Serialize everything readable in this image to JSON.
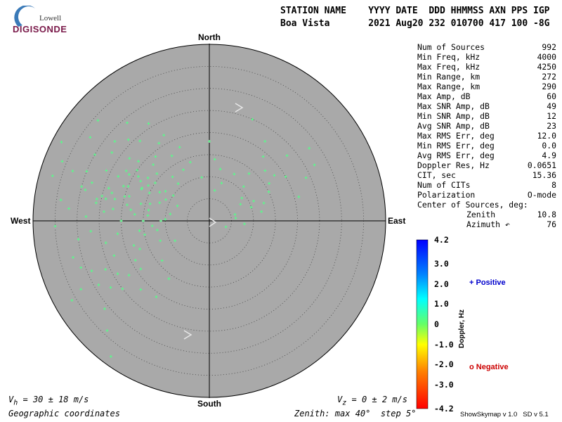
{
  "logo": {
    "small": "Lowell",
    "big": "DIGISONDE"
  },
  "header": {
    "line1": "STATION NAME    YYYY DATE  DDD HHMMSS AXN PPS IGP",
    "line2": "Boa Vista       2021 Aug20 232 010700 417 100 -8G"
  },
  "stats": [
    {
      "label": "Num of Sources",
      "value": "992"
    },
    {
      "label": "Min Freq, kHz",
      "value": "4000"
    },
    {
      "label": "Max Freq, kHz",
      "value": "4250"
    },
    {
      "label": "Min Range, km",
      "value": "272"
    },
    {
      "label": "Max Range, km",
      "value": "290"
    },
    {
      "label": "Max Amp, dB",
      "value": "60"
    },
    {
      "label": "Max SNR Amp, dB",
      "value": "49"
    },
    {
      "label": "Min SNR Amp, dB",
      "value": "12"
    },
    {
      "label": "Avg SNR Amp, dB",
      "value": "23"
    },
    {
      "label": "Max RMS Err, deg",
      "value": "12.0"
    },
    {
      "label": "Min RMS Err, deg",
      "value": "0.0"
    },
    {
      "label": "Avg RMS Err, deg",
      "value": "4.9"
    },
    {
      "label": "Doppler Res, Hz",
      "value": "0.0651"
    },
    {
      "label": "CIT, sec",
      "value": "15.36"
    },
    {
      "label": "Num of CITs",
      "value": "8"
    },
    {
      "label": "Polarization",
      "value": "O-mode"
    }
  ],
  "center": {
    "title": "Center of Sources, deg:",
    "zenith_label": "Zenith",
    "zenith_value": "10.8",
    "azimuth_label": "Azimuth ↶",
    "azimuth_value": "76"
  },
  "directions": {
    "north": "North",
    "south": "South",
    "east": "East",
    "west": "West"
  },
  "colorbar": {
    "ticks": [
      "4.2",
      "3.0",
      "2.0",
      "1.0",
      "0",
      "-1.0",
      "-2.0",
      "-3.0",
      "-4.2"
    ],
    "label": "Doppler, Hz"
  },
  "legend": {
    "positive": "+ Positive",
    "negative": "o Negative"
  },
  "footer": {
    "vh": "V",
    "vh_sub": "h",
    "vh_rest": " = 30 ± 18 m/s",
    "vz": "V",
    "vz_sub": "z",
    "vz_rest": " = 0 ± 2 m/s",
    "coords": "Geographic coordinates",
    "zenith": "Zenith: max 40°  step 5°",
    "version": "ShowSkymap v 1.0   SD v 5.1"
  },
  "colors": {
    "disc": "#a9a9a9",
    "point": "#55ff88",
    "positive": "#0000cc",
    "negative": "#cc0000"
  },
  "chart_data": {
    "type": "scatter",
    "projection": "polar skymap",
    "r_max_deg": 40,
    "r_step_deg": 5,
    "doppler_range": [
      -4.2,
      4.2
    ],
    "approximate": true,
    "r_unit": "zenith deg",
    "theta_unit": "azimuth deg",
    "points": [
      [
        6,
        76
      ],
      [
        6,
        84
      ],
      [
        4,
        110
      ],
      [
        8,
        95
      ],
      [
        8,
        62
      ],
      [
        10,
        72
      ],
      [
        11,
        66
      ],
      [
        12,
        80
      ],
      [
        13,
        72
      ],
      [
        15,
        64
      ],
      [
        16,
        58
      ],
      [
        18,
        55
      ],
      [
        21,
        75
      ],
      [
        22,
        35
      ],
      [
        25,
        23
      ],
      [
        27,
        62
      ],
      [
        10,
        272
      ],
      [
        14,
        280
      ],
      [
        20,
        286
      ],
      [
        17,
        296
      ],
      [
        25,
        283
      ],
      [
        30,
        285
      ],
      [
        34,
        278
      ],
      [
        33,
        290
      ],
      [
        27,
        305
      ],
      [
        15,
        305
      ],
      [
        13,
        320
      ],
      [
        12,
        290
      ],
      [
        16,
        312
      ],
      [
        21,
        300
      ],
      [
        18,
        300
      ],
      [
        19,
        302
      ],
      [
        22,
        301
      ],
      [
        17,
        295
      ],
      [
        20,
        293
      ],
      [
        23,
        296
      ],
      [
        14,
        286
      ],
      [
        16,
        284
      ],
      [
        24,
        288
      ],
      [
        26,
        296
      ],
      [
        23,
        308
      ],
      [
        21,
        310
      ],
      [
        18,
        315
      ],
      [
        13,
        300
      ],
      [
        15,
        295
      ],
      [
        19,
        287
      ],
      [
        22,
        283
      ],
      [
        11,
        296
      ],
      [
        12,
        304
      ],
      [
        17,
        305
      ],
      [
        14,
        275
      ],
      [
        18,
        278
      ],
      [
        22,
        277
      ],
      [
        26,
        281
      ],
      [
        29,
        284
      ],
      [
        24,
        275
      ],
      [
        20,
        270
      ],
      [
        27,
        265
      ],
      [
        21,
        262
      ],
      [
        16,
        262
      ],
      [
        12,
        260
      ],
      [
        18,
        252
      ],
      [
        23,
        250
      ],
      [
        26,
        245
      ],
      [
        29,
        247
      ],
      [
        33,
        242
      ],
      [
        36,
        240
      ],
      [
        32,
        255
      ],
      [
        30,
        262
      ],
      [
        24,
        258
      ],
      [
        25,
        232
      ],
      [
        31,
        230
      ],
      [
        34,
        223
      ],
      [
        38,
        216
      ],
      [
        12,
        248
      ],
      [
        9,
        240
      ],
      [
        14,
        230
      ],
      [
        19,
        235
      ],
      [
        22,
        225
      ],
      [
        21,
        215
      ],
      [
        16,
        215
      ],
      [
        35,
        268
      ],
      [
        37,
        286
      ],
      [
        33,
        305
      ],
      [
        30,
        300
      ],
      [
        28,
        310
      ],
      [
        26,
        315
      ],
      [
        24,
        319
      ],
      [
        19,
        320
      ],
      [
        17,
        330
      ],
      [
        21,
        327
      ],
      [
        13,
        333
      ],
      [
        11,
        320
      ],
      [
        10,
        305
      ],
      [
        8,
        295
      ],
      [
        9,
        280
      ],
      [
        11,
        270
      ],
      [
        13,
        265
      ],
      [
        15,
        258
      ],
      [
        17,
        248
      ],
      [
        19,
        242
      ],
      [
        22,
        236
      ],
      [
        24,
        240
      ],
      [
        27,
        236
      ],
      [
        29,
        240
      ],
      [
        31,
        250
      ],
      [
        28,
        272
      ],
      [
        32,
        275
      ],
      [
        30,
        292
      ],
      [
        36,
        292
      ],
      [
        38,
        298
      ],
      [
        34,
        312
      ],
      [
        29,
        320
      ],
      [
        26,
        328
      ],
      [
        22,
        332
      ],
      [
        18,
        338
      ],
      [
        14,
        342
      ],
      [
        10,
        350
      ],
      [
        7,
        10
      ],
      [
        9,
        18
      ],
      [
        12,
        12
      ],
      [
        14,
        5
      ],
      [
        18,
        0
      ],
      [
        12,
        28
      ],
      [
        14,
        40
      ],
      [
        17,
        48
      ],
      [
        11,
        45
      ],
      [
        9,
        55
      ],
      [
        20,
        60
      ],
      [
        24,
        66
      ],
      [
        23,
        50
      ],
      [
        28,
        54
      ],
      [
        19,
        40
      ],
      [
        24,
        282
      ],
      [
        26,
        279
      ],
      [
        28,
        288
      ],
      [
        19,
        281
      ],
      [
        17,
        275
      ],
      [
        15,
        270
      ],
      [
        21,
        292
      ],
      [
        23,
        286
      ],
      [
        16,
        300
      ],
      [
        20,
        305
      ]
    ]
  }
}
